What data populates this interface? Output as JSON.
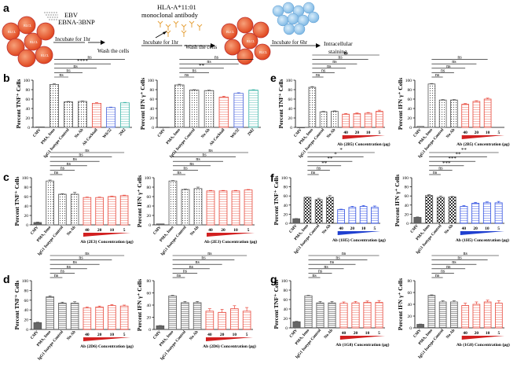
{
  "figure": {
    "schematic": {
      "panel_label": "a",
      "step1": {
        "ebv": "EBV",
        "peptide": "EBNA-3BNP",
        "incubate": "Incubate for 1hr",
        "wash": "Wash the cells"
      },
      "step2": {
        "antibody": "HLA-A*11:01",
        "antibody2": "monoclonal antibody",
        "incubate": "Incubate for 1hr",
        "wash": "Wash the cells"
      },
      "step3": {
        "incubate": "Incubate for 6hr",
        "stain1": "Intracellular",
        "stain2": "staining"
      },
      "cell_label": "BLCL"
    }
  },
  "chart_data": [
    {
      "id": "b1",
      "panel": "b",
      "type": "bar",
      "title": "",
      "ylabel": "Percent TNF⁺ Cells",
      "ylim": [
        0,
        100
      ],
      "yticks": [
        0,
        20,
        40,
        60,
        80,
        100
      ],
      "categories": [
        "CMV",
        "PMA, Iono",
        "IgG1 Isotype Control",
        "No Ab",
        "Ab Cocktail",
        "W6/32",
        "2M2"
      ],
      "values": [
        1,
        91,
        54,
        55,
        51,
        42,
        52
      ],
      "errors": [
        0,
        1.5,
        1,
        1,
        1.5,
        1,
        1
      ],
      "patterns": [
        "grid",
        "dots",
        "dots",
        "dots",
        "stripe",
        "stripe",
        "stripe"
      ],
      "colors": [
        "#555555",
        "#555555",
        "#555555",
        "#555555",
        "#e8483c",
        "#4a64d8",
        "#3fb6a8"
      ],
      "sig": [
        [
          "ns",
          1,
          6
        ],
        [
          "****",
          1,
          5
        ],
        [
          "ns",
          1,
          4
        ],
        [
          "ns",
          1,
          3
        ],
        [
          "ns",
          1,
          2
        ]
      ],
      "ramp": null
    },
    {
      "id": "b2",
      "panel": "",
      "type": "bar",
      "title": "",
      "ylabel": "Percent IFN γ⁺ Cells",
      "ylim": [
        0,
        100
      ],
      "yticks": [
        0,
        20,
        40,
        60,
        80,
        100
      ],
      "categories": [
        "CMV",
        "PMA, Iono",
        "IgG1 Isotype Control",
        "No Ab",
        "Ab Cocktail",
        "W6/32",
        "2M2"
      ],
      "values": [
        0.5,
        90,
        79,
        78,
        64,
        72,
        79
      ],
      "errors": [
        0,
        1.5,
        1,
        1,
        2,
        1.5,
        1
      ],
      "patterns": [
        "grid",
        "dots",
        "dots",
        "dots",
        "stripe",
        "stripe",
        "stripe"
      ],
      "colors": [
        "#555555",
        "#555555",
        "#555555",
        "#555555",
        "#e8483c",
        "#4a64d8",
        "#3fb6a8"
      ],
      "sig": [
        [
          "ns",
          1,
          6
        ],
        [
          "ns",
          1,
          5
        ],
        [
          "**",
          1,
          4
        ],
        [
          "ns",
          1,
          3
        ],
        [
          "ns",
          1,
          2
        ]
      ],
      "ramp": null
    },
    {
      "id": "e1",
      "panel": "e",
      "type": "bar",
      "title": "",
      "ylabel": "Percent TNF⁺ Cells",
      "ylim": [
        0,
        100
      ],
      "yticks": [
        0,
        20,
        40,
        60,
        80,
        100
      ],
      "categories": [
        "CMV",
        "PMA, Iono",
        "IgG1 Isotype Control",
        "No Ab",
        "40",
        "20",
        "10",
        "5"
      ],
      "values": [
        0,
        85,
        33,
        34,
        28,
        29,
        30,
        34
      ],
      "errors": [
        0,
        1.5,
        1,
        1,
        1.5,
        1.5,
        1.5,
        2.5
      ],
      "patterns": [
        "grid",
        "dots",
        "dots",
        "dots",
        "stripe",
        "stripe",
        "stripe",
        "stripe"
      ],
      "colors": [
        "#555555",
        "#555555",
        "#555555",
        "#555555",
        "#e8483c",
        "#e8483c",
        "#e8483c",
        "#e8483c"
      ],
      "sig": [
        [
          "ns",
          1,
          7
        ],
        [
          "ns",
          1,
          6
        ],
        [
          "ns",
          1,
          5
        ],
        [
          "ns",
          1,
          4
        ],
        [
          "ns",
          1,
          3
        ],
        [
          "ns",
          1,
          2
        ]
      ],
      "ramp": {
        "color": "#d22020",
        "label": "Ab (2B5) Concentration (μg)"
      }
    },
    {
      "id": "e2",
      "panel": "",
      "type": "bar",
      "title": "",
      "ylabel": "Percent IFN γ⁺ Cells",
      "ylim": [
        0,
        100
      ],
      "yticks": [
        0,
        20,
        40,
        60,
        80,
        100
      ],
      "categories": [
        "CMV",
        "PMA, Iono",
        "IgG1 Isotype Control",
        "No Ab",
        "40",
        "20",
        "10",
        "5"
      ],
      "values": [
        2,
        92,
        58,
        58,
        49,
        55,
        60,
        null
      ],
      "errors": [
        0,
        1,
        1,
        1,
        1.5,
        1.5,
        2,
        0
      ],
      "patterns": [
        "grid",
        "dots",
        "dots",
        "dots",
        "stripe",
        "stripe",
        "stripe",
        "stripe"
      ],
      "colors": [
        "#555555",
        "#555555",
        "#555555",
        "#555555",
        "#e8483c",
        "#e8483c",
        "#e8483c",
        "#e8483c"
      ],
      "sig": [
        [
          "ns",
          1,
          6
        ],
        [
          "ns",
          1,
          5
        ],
        [
          "ns",
          1,
          4
        ],
        [
          "ns",
          1,
          3
        ],
        [
          "ns",
          1,
          2
        ]
      ],
      "ramp": {
        "color": "#d22020",
        "label": "Ab (2B5) Concentration (μg)"
      }
    },
    {
      "id": "c1",
      "panel": "c",
      "type": "bar",
      "title": "",
      "ylabel": "Percent TNF⁺ Cells",
      "ylim": [
        0,
        100
      ],
      "yticks": [
        0,
        20,
        40,
        60,
        80,
        100
      ],
      "categories": [
        "CMV",
        "PMA, Iono",
        "IgG1 Isotype Control",
        "No Ab",
        "40",
        "20",
        "10",
        "5"
      ],
      "values": [
        5,
        93,
        65,
        65,
        58,
        58,
        60,
        62
      ],
      "errors": [
        1,
        2,
        1,
        4,
        1,
        1,
        1,
        1
      ],
      "patterns": [
        "solid",
        "dots",
        "dots",
        "dots",
        "stripe",
        "stripe",
        "stripe",
        "stripe"
      ],
      "colors": [
        "#555555",
        "#555555",
        "#555555",
        "#555555",
        "#e8483c",
        "#e8483c",
        "#e8483c",
        "#e8483c"
      ],
      "sig": [
        [
          "ns",
          1,
          7
        ],
        [
          "ns",
          1,
          6
        ],
        [
          "ns",
          1,
          5
        ],
        [
          "ns",
          1,
          4
        ],
        [
          "ns",
          1,
          3
        ],
        [
          "ns",
          1,
          2
        ]
      ],
      "ramp": {
        "color": "#d22020",
        "label": "Ab (2E3) Concentration (μg)"
      }
    },
    {
      "id": "c2",
      "panel": "",
      "type": "bar",
      "title": "",
      "ylabel": "Percent IFN γ⁺ Cells",
      "ylim": [
        0,
        100
      ],
      "yticks": [
        0,
        20,
        40,
        60,
        80,
        100
      ],
      "categories": [
        "CMV",
        "PMA, Iono",
        "IgG1 Isotype Control",
        "No Ab",
        "40",
        "20",
        "10",
        "5"
      ],
      "values": [
        2,
        93,
        75,
        77,
        72,
        72,
        72,
        74
      ],
      "errors": [
        0,
        1,
        1,
        3,
        1,
        1,
        1,
        1
      ],
      "patterns": [
        "solid",
        "dots",
        "dots",
        "dots",
        "stripe",
        "stripe",
        "stripe",
        "stripe"
      ],
      "colors": [
        "#555555",
        "#555555",
        "#555555",
        "#555555",
        "#e8483c",
        "#e8483c",
        "#e8483c",
        "#e8483c"
      ],
      "sig": [
        [
          "ns",
          1,
          7
        ],
        [
          "ns",
          1,
          6
        ],
        [
          "ns",
          1,
          5
        ],
        [
          "ns",
          1,
          4
        ],
        [
          "ns",
          1,
          3
        ],
        [
          "ns",
          1,
          2
        ]
      ],
      "ramp": {
        "color": "#d22020",
        "label": "Ab (2E3) Concentration (μg)"
      }
    },
    {
      "id": "f1",
      "panel": "f",
      "type": "bar",
      "title": "",
      "ylabel": "Percent TNF⁺ Cells",
      "ylim": [
        0,
        100
      ],
      "yticks": [
        0,
        20,
        40,
        60,
        80,
        100
      ],
      "categories": [
        "CMV",
        "PMA, Iono",
        "IgG1 Isotype Control",
        "No Ab",
        "40",
        "20",
        "10",
        "5"
      ],
      "values": [
        10,
        57,
        52,
        57,
        30,
        35,
        37,
        35
      ],
      "errors": [
        0.5,
        0.5,
        3,
        4,
        1,
        2,
        2,
        3
      ],
      "patterns": [
        "solid",
        "check",
        "check",
        "check",
        "stripe",
        "stripe",
        "stripe",
        "stripe"
      ],
      "colors": [
        "#555555",
        "#555555",
        "#555555",
        "#555555",
        "#3050e0",
        "#3050e0",
        "#3050e0",
        "#3050e0"
      ],
      "sig": [
        [
          "*",
          1,
          7
        ],
        [
          "*",
          1,
          6
        ],
        [
          "**",
          1,
          5
        ],
        [
          "**",
          1,
          4
        ],
        [
          "ns",
          1,
          3
        ],
        [
          "ns",
          1,
          2
        ]
      ],
      "ramp": {
        "color": "#2040d0",
        "label": "Ab (1H5) Concentration (μg)"
      }
    },
    {
      "id": "f2",
      "panel": "",
      "type": "bar",
      "title": "",
      "ylabel": "Percent IFN γ⁺ Cells",
      "ylim": [
        0,
        100
      ],
      "yticks": [
        0,
        20,
        40,
        60,
        80,
        100
      ],
      "categories": [
        "CMV",
        "PMA, Iono",
        "IgG1 Isotype Control",
        "No Ab",
        "40",
        "20",
        "10",
        "5"
      ],
      "values": [
        13,
        61,
        57,
        58,
        37,
        44,
        45,
        45
      ],
      "errors": [
        1,
        2,
        3,
        1,
        2,
        2,
        2,
        3
      ],
      "patterns": [
        "solid",
        "check",
        "check",
        "check",
        "stripe",
        "stripe",
        "stripe",
        "stripe"
      ],
      "colors": [
        "#555555",
        "#555555",
        "#555555",
        "#555555",
        "#3050e0",
        "#3050e0",
        "#3050e0",
        "#3050e0"
      ],
      "sig": [
        [
          "**",
          1,
          7
        ],
        [
          "**",
          1,
          6
        ],
        [
          "***",
          1,
          5
        ],
        [
          "***",
          1,
          4
        ],
        [
          "ns",
          1,
          3
        ],
        [
          "ns",
          1,
          2
        ]
      ],
      "ramp": {
        "color": "#2040d0",
        "label": "Ab (1H5) Concentration (μg)"
      }
    },
    {
      "id": "d1",
      "panel": "d",
      "type": "bar",
      "title": "",
      "ylabel": "Percent TNF⁺ Cells",
      "ylim": [
        0,
        100
      ],
      "yticks": [
        0,
        20,
        40,
        60,
        80,
        100
      ],
      "categories": [
        "CMV",
        "PMA, Iono",
        "IgG1 Isotype Control",
        "No Ab",
        "40",
        "20",
        "10",
        "5"
      ],
      "values": [
        14,
        67,
        54,
        54,
        44,
        46,
        49,
        48
      ],
      "errors": [
        1,
        2,
        2,
        3,
        2,
        2,
        2,
        2
      ],
      "patterns": [
        "solid",
        "hline",
        "hline",
        "hline",
        "stripe",
        "stripe",
        "stripe",
        "stripe"
      ],
      "colors": [
        "#555555",
        "#555555",
        "#555555",
        "#555555",
        "#e8483c",
        "#e8483c",
        "#e8483c",
        "#e8483c"
      ],
      "sig": [
        [
          "ns",
          1,
          7
        ],
        [
          "ns",
          1,
          6
        ],
        [
          "ns",
          1,
          5
        ],
        [
          "ns",
          1,
          4
        ],
        [
          "ns",
          1,
          3
        ],
        [
          "ns",
          1,
          2
        ]
      ],
      "ramp": {
        "color": "#d22020",
        "label": "Ab (2D6) Concentration (μg)"
      }
    },
    {
      "id": "d2",
      "panel": "",
      "type": "bar",
      "title": "",
      "ylabel": "Percent IFN γ⁺ Cells",
      "ylim": [
        0,
        80
      ],
      "yticks": [
        0,
        20,
        40,
        60,
        80
      ],
      "categories": [
        "CMV",
        "PMA, Iono",
        "IgG1 Isotype Control",
        "No Ab",
        "40",
        "20",
        "10",
        "5"
      ],
      "values": [
        6,
        55,
        44,
        44,
        30,
        28,
        34,
        30
      ],
      "errors": [
        0.5,
        1,
        2,
        2,
        4,
        5,
        5,
        6
      ],
      "patterns": [
        "solid",
        "hline",
        "hline",
        "hline",
        "stripe",
        "stripe",
        "stripe",
        "stripe"
      ],
      "colors": [
        "#555555",
        "#555555",
        "#555555",
        "#555555",
        "#e8483c",
        "#e8483c",
        "#e8483c",
        "#e8483c"
      ],
      "sig": [
        [
          "ns",
          1,
          7
        ],
        [
          "ns",
          1,
          6
        ],
        [
          "ns",
          1,
          5
        ],
        [
          "ns",
          1,
          4
        ],
        [
          "ns",
          1,
          3
        ],
        [
          "ns",
          1,
          2
        ]
      ],
      "ramp": {
        "color": "#d22020",
        "label": "Ab (2D6) Concentration (μg)"
      }
    },
    {
      "id": "g1",
      "panel": "g",
      "type": "bar",
      "title": "",
      "ylabel": "Percent TNF⁺ Cells",
      "ylim": [
        0,
        100
      ],
      "yticks": [
        0,
        20,
        40,
        60,
        80,
        100
      ],
      "categories": [
        "CMV",
        "PMA, Iono",
        "IgG1 Isotype Control",
        "No Ab",
        "40",
        "20",
        "10",
        "5"
      ],
      "values": [
        13,
        68,
        53,
        53,
        52,
        53,
        54,
        54
      ],
      "errors": [
        1,
        1,
        3,
        3,
        3,
        3,
        3,
        4
      ],
      "patterns": [
        "solid",
        "hline",
        "hline",
        "hline",
        "stripe",
        "stripe",
        "stripe",
        "stripe"
      ],
      "colors": [
        "#555555",
        "#555555",
        "#555555",
        "#555555",
        "#e8483c",
        "#e8483c",
        "#e8483c",
        "#e8483c"
      ],
      "sig": [
        [
          "ns",
          1,
          7
        ],
        [
          "ns",
          1,
          6
        ],
        [
          "ns",
          1,
          5
        ],
        [
          "ns",
          1,
          4
        ],
        [
          "ns",
          1,
          3
        ],
        [
          "ns",
          1,
          2
        ]
      ],
      "ramp": {
        "color": "#d22020",
        "label": "Ab (1G8) Concentration (μg)"
      }
    },
    {
      "id": "g2",
      "panel": "",
      "type": "bar",
      "title": "",
      "ylabel": "Percent IFN γ⁺ Cells",
      "ylim": [
        0,
        80
      ],
      "yticks": [
        0,
        20,
        40,
        60,
        80
      ],
      "categories": [
        "CMV",
        "PMA, Iono",
        "IgG1 Isotype Control",
        "No Ab",
        "40",
        "20",
        "10",
        "5"
      ],
      "values": [
        6,
        55,
        44,
        44,
        38,
        40,
        44,
        42
      ],
      "errors": [
        0.5,
        1,
        2,
        2,
        4,
        4,
        3,
        4
      ],
      "patterns": [
        "solid",
        "hline",
        "hline",
        "hline",
        "stripe",
        "stripe",
        "stripe",
        "stripe"
      ],
      "colors": [
        "#555555",
        "#555555",
        "#555555",
        "#555555",
        "#e8483c",
        "#e8483c",
        "#e8483c",
        "#e8483c"
      ],
      "sig": [
        [
          "ns",
          1,
          7
        ],
        [
          "ns",
          1,
          6
        ],
        [
          "ns",
          1,
          5
        ],
        [
          "ns",
          1,
          4
        ],
        [
          "ns",
          1,
          3
        ],
        [
          "ns",
          1,
          2
        ]
      ],
      "ramp": {
        "color": "#d22020",
        "label": "Ab (1G8) Concentration (μg)"
      }
    }
  ]
}
